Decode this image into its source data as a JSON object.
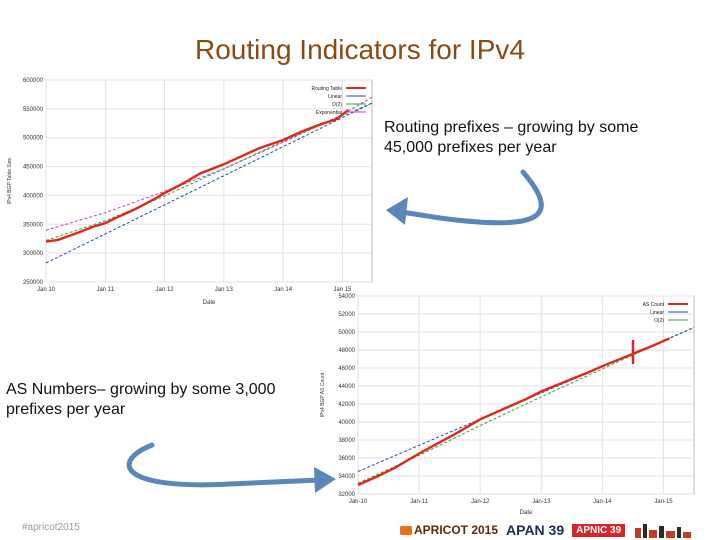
{
  "slide": {
    "title": "Routing Indicators for IPv4",
    "note_top": [
      "Routing prefixes – growing by some",
      "45,000 prefixes per year"
    ],
    "note_bottom": [
      "AS Numbers– growing by some 3,000",
      "prefixes per year"
    ],
    "footer_handle": "#apricot2015",
    "sponsors": [
      "APRICOT 2015",
      "APAN 39",
      "APNIC 39"
    ],
    "colors": {
      "title": "#8a4b12",
      "arrow": "#5b87b8",
      "annotation": "#e0281a"
    }
  },
  "chart_data": [
    {
      "type": "line",
      "title": "",
      "xlabel": "Date",
      "ylabel": "IPv4 BGP Table Size",
      "x_ticks": [
        "Jan 10",
        "Jan 11",
        "Jan 12",
        "Jan 13",
        "Jan 14",
        "Jan 15"
      ],
      "y_ticks": [
        250000,
        300000,
        350000,
        400000,
        450000,
        500000,
        550000,
        600000
      ],
      "xlim": [
        2010.0,
        2015.5
      ],
      "ylim": [
        250000,
        600000
      ],
      "grid": true,
      "legend_position": "top-right",
      "legend": [
        "Routing Table",
        "Linear",
        "O(2)",
        "Exponential"
      ],
      "series": [
        {
          "name": "Routing Table",
          "color": "#e0281a",
          "x": [
            2010.0,
            2010.2,
            2010.4,
            2010.6,
            2010.8,
            2011.0,
            2011.2,
            2011.5,
            2011.8,
            2012.0,
            2012.3,
            2012.6,
            2013.0,
            2013.3,
            2013.6,
            2014.0,
            2014.3,
            2014.6,
            2014.9,
            2015.1
          ],
          "y": [
            320000,
            323000,
            330000,
            338000,
            346000,
            352000,
            362000,
            376000,
            392000,
            404000,
            420000,
            438000,
            454000,
            468000,
            482000,
            496000,
            510000,
            522000,
            532000,
            548000
          ]
        },
        {
          "name": "Linear",
          "color": "#1a52b0",
          "x": [
            2010.0,
            2015.5
          ],
          "y": [
            283000,
            560000
          ]
        },
        {
          "name": "O(2)",
          "color": "#2ea83a",
          "x": [
            2010.0,
            2011.0,
            2012.0,
            2013.0,
            2014.0,
            2015.0,
            2015.5
          ],
          "y": [
            322000,
            356000,
            399000,
            446000,
            494000,
            538000,
            560000
          ]
        },
        {
          "name": "Exponential",
          "color": "#c040c8",
          "x": [
            2010.0,
            2011.0,
            2012.0,
            2013.0,
            2014.0,
            2015.0,
            2015.5
          ],
          "y": [
            340000,
            370000,
            407000,
            446000,
            492000,
            540000,
            570000
          ]
        }
      ]
    },
    {
      "type": "line",
      "title": "",
      "xlabel": "Date",
      "ylabel": "IPv4 BGP AS Count",
      "x_ticks": [
        "Jan-10",
        "Jan-11",
        "Jan-12",
        "Jan-13",
        "Jan-14",
        "Jan-15"
      ],
      "y_ticks": [
        32000,
        34000,
        36000,
        38000,
        40000,
        42000,
        44000,
        46000,
        48000,
        50000,
        52000,
        54000
      ],
      "xlim": [
        2010.0,
        2015.5
      ],
      "ylim": [
        32000,
        54000
      ],
      "grid": true,
      "legend_position": "top-right",
      "legend": [
        "AS Count",
        "Linear",
        "O(2)"
      ],
      "series": [
        {
          "name": "AS Count",
          "color": "#e0281a",
          "x": [
            2010.0,
            2010.3,
            2010.6,
            2011.0,
            2011.3,
            2011.6,
            2012.0,
            2012.4,
            2012.8,
            2013.0,
            2013.4,
            2013.8,
            2014.0,
            2014.4,
            2014.8,
            2015.1
          ],
          "y": [
            33000,
            33900,
            34900,
            36500,
            37600,
            38700,
            40300,
            41500,
            42700,
            43400,
            44500,
            45600,
            46200,
            47300,
            48400,
            49300
          ]
        },
        {
          "name": "Linear",
          "color": "#1a52b0",
          "x": [
            2010.0,
            2015.5
          ],
          "y": [
            34500,
            50500
          ]
        },
        {
          "name": "O(2)",
          "color": "#2ea83a",
          "x": [
            2010.0,
            2011.0,
            2012.0,
            2013.0,
            2014.0,
            2015.0,
            2015.5
          ],
          "y": [
            33200,
            36300,
            39600,
            42800,
            45900,
            49000,
            50500
          ]
        }
      ]
    }
  ]
}
